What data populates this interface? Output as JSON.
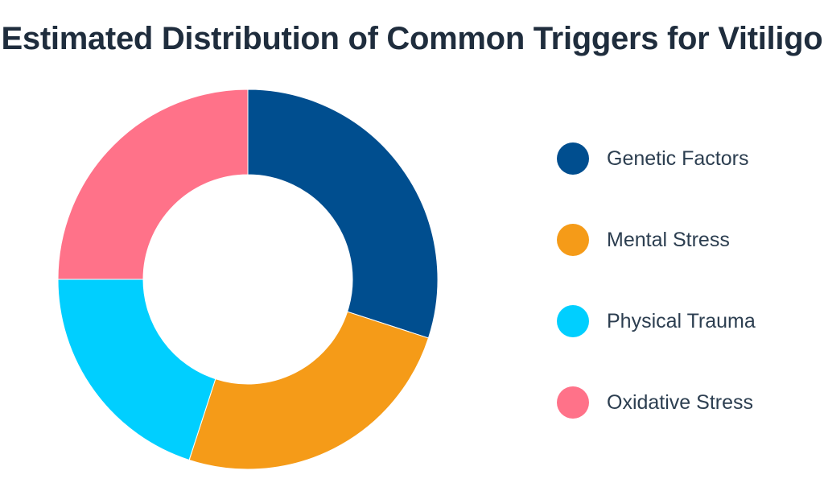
{
  "chart_data": {
    "type": "pie",
    "title": "Estimated Distribution of Common Triggers for Vitiligo",
    "donut": true,
    "legend_position": "right",
    "categories": [
      "Genetic Factors",
      "Mental Stress",
      "Physical Trauma",
      "Oxidative Stress"
    ],
    "values": [
      30,
      25,
      20,
      25
    ],
    "colors": [
      "#004e8f",
      "#f59b18",
      "#00cfff",
      "#ff7289"
    ]
  }
}
